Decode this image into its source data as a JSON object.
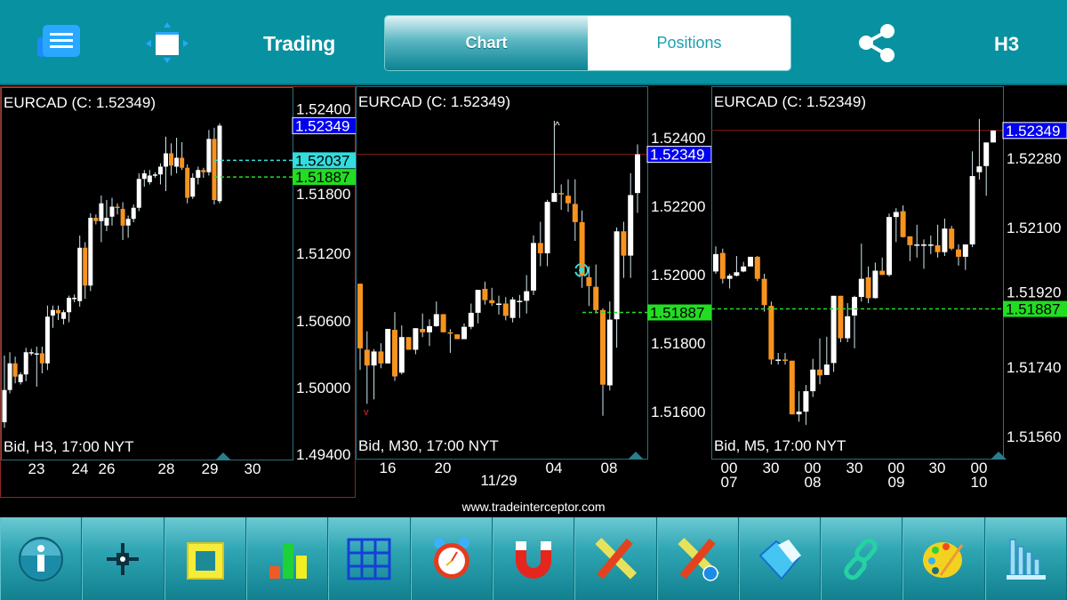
{
  "header": {
    "title": "Trading",
    "tabs": [
      {
        "label": "Chart",
        "selected": true
      },
      {
        "label": "Positions",
        "selected": false
      }
    ],
    "timeframe": "H3",
    "icons": [
      "menu-icon",
      "fullscreen-icon",
      "share-icon"
    ]
  },
  "colors": {
    "header": "#0891a1",
    "bull_candle": "#ffffff",
    "bear_candle": "#f7931e",
    "current_price": "#0000ee",
    "green_line": "#22dd22",
    "cyan_line": "#33dddd",
    "red_line": "#8b1a1a"
  },
  "footer": {
    "site": "www.tradeinterceptor.com"
  },
  "toolbar": [
    "info-icon",
    "crosshair-icon",
    "ruler-frame-icon",
    "bar-chart-icon",
    "grid-icon",
    "alarm-clock-icon",
    "magnet-icon",
    "drawing-tools-icon",
    "drawing-tools-info-icon",
    "folder-icon",
    "link-icon",
    "palette-icon",
    "indicators-icon"
  ],
  "chart_data": [
    {
      "type": "candlestick",
      "title": "EURCAD (C: 1.52349)",
      "footer": "Bid, H3, 17:00 NYT",
      "y_ticks": [
        "1.52400",
        "1.51800",
        "1.51200",
        "1.50600",
        "1.50000",
        "1.49400"
      ],
      "x_ticks": [
        "23",
        "24",
        "26",
        "28",
        "29",
        "30"
      ],
      "price_tags": [
        {
          "value": "1.52349",
          "kind": "current"
        },
        {
          "value": "1.52037",
          "kind": "cyan"
        },
        {
          "value": "1.51887",
          "kind": "green"
        }
      ],
      "candles": [
        [
          1.4968,
          1.5028,
          1.4963,
          1.4997
        ],
        [
          1.4997,
          1.5031,
          1.4994,
          1.5021
        ],
        [
          1.5021,
          1.5027,
          1.5003,
          1.5009
        ],
        [
          1.5004,
          1.5013,
          1.5002,
          1.5011
        ],
        [
          1.5011,
          1.5035,
          1.5005,
          1.5031
        ],
        [
          1.5031,
          1.5034,
          1.5028,
          1.5031
        ],
        [
          1.503,
          1.5036,
          1.5,
          1.503
        ],
        [
          1.503,
          1.5036,
          1.5012,
          1.5021
        ],
        [
          1.5021,
          1.5073,
          1.5015,
          1.5063
        ],
        [
          1.5064,
          1.5073,
          1.5053,
          1.5069
        ],
        [
          1.5069,
          1.5073,
          1.506,
          1.5066
        ],
        [
          1.5061,
          1.5069,
          1.5056,
          1.5067
        ],
        [
          1.5067,
          1.5082,
          1.5058,
          1.508
        ],
        [
          1.508,
          1.5083,
          1.5076,
          1.508
        ],
        [
          1.5077,
          1.5136,
          1.5072,
          1.5125
        ],
        [
          1.5125,
          1.513,
          1.5079,
          1.5091
        ],
        [
          1.5091,
          1.5156,
          1.5086,
          1.5152
        ],
        [
          1.5152,
          1.5155,
          1.5146,
          1.5149
        ],
        [
          1.5149,
          1.5172,
          1.513,
          1.5165
        ],
        [
          1.5145,
          1.5168,
          1.514,
          1.5152
        ],
        [
          1.5153,
          1.517,
          1.5145,
          1.5162
        ],
        [
          1.5162,
          1.5165,
          1.5155,
          1.5161
        ],
        [
          1.516,
          1.5166,
          1.5132,
          1.5145
        ],
        [
          1.5145,
          1.5154,
          1.5134,
          1.5151
        ],
        [
          1.5151,
          1.5164,
          1.5148,
          1.5161
        ],
        [
          1.5161,
          1.5192,
          1.5158,
          1.5187
        ],
        [
          1.5187,
          1.5195,
          1.518,
          1.5192
        ],
        [
          1.5184,
          1.5195,
          1.5182,
          1.519
        ],
        [
          1.5191,
          1.5193,
          1.5188,
          1.5191
        ],
        [
          1.5191,
          1.5201,
          1.5182,
          1.5198
        ],
        [
          1.5198,
          1.5225,
          1.5176,
          1.521
        ],
        [
          1.521,
          1.5219,
          1.519,
          1.5199
        ],
        [
          1.5198,
          1.5224,
          1.5192,
          1.5206
        ],
        [
          1.5206,
          1.522,
          1.5195,
          1.5197
        ],
        [
          1.5197,
          1.52,
          1.5165,
          1.517
        ],
        [
          1.5171,
          1.5192,
          1.5169,
          1.5188
        ],
        [
          1.5188,
          1.5198,
          1.5182,
          1.5195
        ],
        [
          1.5195,
          1.5197,
          1.5188,
          1.5193
        ],
        [
          1.5193,
          1.5231,
          1.519,
          1.5223
        ],
        [
          1.5223,
          1.5233,
          1.5164,
          1.5168
        ],
        [
          1.5167,
          1.5237,
          1.5165,
          1.52349
        ]
      ]
    },
    {
      "type": "candlestick",
      "title": "EURCAD (C: 1.52349)",
      "footer": "Bid, M30, 17:00 NYT",
      "y_ticks": [
        "1.52400",
        "1.52200",
        "1.52000",
        "1.51800",
        "1.51600"
      ],
      "x_ticks": [
        "16",
        "20",
        "04",
        "08"
      ],
      "x_date": "11/29",
      "price_tags": [
        {
          "value": "1.52349",
          "kind": "current"
        },
        {
          "value": "1.51887",
          "kind": "green"
        }
      ],
      "candles": [
        [
          1.51971,
          1.51971,
          1.51719,
          1.51782
        ],
        [
          1.51778,
          1.51832,
          1.5162,
          1.51732
        ],
        [
          1.51732,
          1.5178,
          1.51633,
          1.51773
        ],
        [
          1.51773,
          1.51797,
          1.51724,
          1.51738
        ],
        [
          1.51738,
          1.51839,
          1.51738,
          1.51839
        ],
        [
          1.51836,
          1.51888,
          1.51687,
          1.517
        ],
        [
          1.51711,
          1.51849,
          1.51706,
          1.51815
        ],
        [
          1.51815,
          1.51815,
          1.51778,
          1.51778
        ],
        [
          1.51778,
          1.51841,
          1.51765,
          1.51841
        ],
        [
          1.51839,
          1.51884,
          1.51815,
          1.51829
        ],
        [
          1.51829,
          1.51867,
          1.51789,
          1.51847
        ],
        [
          1.51847,
          1.51919,
          1.51845,
          1.51882
        ],
        [
          1.51882,
          1.51882,
          1.51829,
          1.51829
        ],
        [
          1.51829,
          1.51838,
          1.51769,
          1.51825
        ],
        [
          1.51823,
          1.51823,
          1.51809,
          1.51809
        ],
        [
          1.51809,
          1.51855,
          1.51809,
          1.51845
        ],
        [
          1.51845,
          1.51913,
          1.51838,
          1.51886
        ],
        [
          1.51886,
          1.51953,
          1.51855,
          1.51953
        ],
        [
          1.51956,
          1.51977,
          1.5191,
          1.51923
        ],
        [
          1.51923,
          1.51959,
          1.51906,
          1.51914
        ],
        [
          1.51913,
          1.51936,
          1.51881,
          1.51913
        ],
        [
          1.51913,
          1.51932,
          1.51864,
          1.51877
        ],
        [
          1.51871,
          1.51932,
          1.51858,
          1.51925
        ],
        [
          1.51921,
          1.51938,
          1.51871,
          1.51921
        ],
        [
          1.51921,
          1.51996,
          1.51884,
          1.51949
        ],
        [
          1.51951,
          1.52112,
          1.51938,
          1.5209
        ],
        [
          1.5209,
          1.52152,
          1.52022,
          1.5206
        ],
        [
          1.5206,
          1.52216,
          1.52022,
          1.5221
        ],
        [
          1.5221,
          1.52447,
          1.5221,
          1.52236
        ],
        [
          1.52236,
          1.52261,
          1.52187,
          1.52234
        ],
        [
          1.52228,
          1.52276,
          1.52181,
          1.52206
        ],
        [
          1.52204,
          1.52276,
          1.52096,
          1.52151
        ],
        [
          1.52151,
          1.52185,
          1.51959,
          1.51994
        ],
        [
          1.5199,
          1.52022,
          1.51906,
          1.51964
        ],
        [
          1.51962,
          1.52027,
          1.51884,
          1.51894
        ],
        [
          1.51894,
          1.51899,
          1.51585,
          1.51676
        ],
        [
          1.51674,
          1.51919,
          1.51659,
          1.51866
        ],
        [
          1.51867,
          1.52135,
          1.51784,
          1.52124
        ],
        [
          1.52124,
          1.52152,
          1.51988,
          1.52053
        ],
        [
          1.52053,
          1.52294,
          1.51988,
          1.5223
        ],
        [
          1.52236,
          1.52378,
          1.52178,
          1.52349
        ]
      ]
    },
    {
      "type": "candlestick",
      "title": "EURCAD (C: 1.52349)",
      "footer": "Bid, M5, 17:00 NYT",
      "y_ticks": [
        "1.52280",
        "1.52100",
        "1.51920",
        "1.51740",
        "1.51560"
      ],
      "x_ticks": [
        [
          "00",
          "07"
        ],
        [
          "30",
          ""
        ],
        [
          "00",
          "08"
        ],
        [
          "30",
          ""
        ],
        [
          "00",
          "09"
        ],
        [
          "30",
          ""
        ],
        [
          "00",
          "10"
        ]
      ],
      "price_tags": [
        {
          "value": "1.52349",
          "kind": "current"
        },
        {
          "value": "1.51887",
          "kind": "green"
        }
      ],
      "candles": [
        [
          1.51984,
          1.52049,
          1.51978,
          1.52029
        ],
        [
          1.52032,
          1.52043,
          1.51953,
          1.51965
        ],
        [
          1.51965,
          1.51978,
          1.5194,
          1.51973
        ],
        [
          1.51973,
          1.52024,
          1.51971,
          1.51982
        ],
        [
          1.51984,
          1.52009,
          1.51982,
          1.51997
        ],
        [
          1.51997,
          1.52022,
          1.51997,
          1.52022
        ],
        [
          1.52022,
          1.52024,
          1.51959,
          1.51965
        ],
        [
          1.51965,
          1.51978,
          1.5188,
          1.51897
        ],
        [
          1.51895,
          1.51906,
          1.51743,
          1.51756
        ],
        [
          1.51756,
          1.51773,
          1.51743,
          1.51756
        ],
        [
          1.51756,
          1.51773,
          1.51743,
          1.51755
        ],
        [
          1.51753,
          1.51753,
          1.51614,
          1.51614
        ],
        [
          1.51614,
          1.51674,
          1.51595,
          1.51621
        ],
        [
          1.51621,
          1.5169,
          1.51587,
          1.51674
        ],
        [
          1.51674,
          1.51758,
          1.51659,
          1.5173
        ],
        [
          1.5173,
          1.51811,
          1.51692,
          1.51715
        ],
        [
          1.51716,
          1.51815,
          1.51716,
          1.51743
        ],
        [
          1.51747,
          1.51921,
          1.51724,
          1.51921
        ],
        [
          1.51921,
          1.51921,
          1.51801,
          1.51811
        ],
        [
          1.51811,
          1.51902,
          1.51801,
          1.51868
        ],
        [
          1.5187,
          1.51921,
          1.51785,
          1.51918
        ],
        [
          1.51918,
          1.52056,
          1.51906,
          1.51965
        ],
        [
          1.51969,
          1.51997,
          1.51902,
          1.51915
        ],
        [
          1.51915,
          1.52007,
          1.51914,
          1.51986
        ],
        [
          1.51986,
          1.5202,
          1.51975,
          1.51975
        ],
        [
          1.51975,
          1.52134,
          1.51971,
          1.52125
        ],
        [
          1.52125,
          1.52148,
          1.5206,
          1.52138
        ],
        [
          1.5214,
          1.52155,
          1.52072,
          1.52073
        ],
        [
          1.52075,
          1.52075,
          1.52011,
          1.52052
        ],
        [
          1.52054,
          1.52105,
          1.5202,
          1.52054
        ],
        [
          1.52054,
          1.52067,
          1.51991,
          1.52054
        ],
        [
          1.52054,
          1.52077,
          1.52029,
          1.52054
        ],
        [
          1.52052,
          1.52105,
          1.5202,
          1.52034
        ],
        [
          1.52034,
          1.52121,
          1.52024,
          1.52095
        ],
        [
          1.52095,
          1.52102,
          1.52039,
          1.52043
        ],
        [
          1.52041,
          1.52054,
          1.51999,
          1.52022
        ],
        [
          1.52022,
          1.52054,
          1.51988,
          1.52054
        ],
        [
          1.52054,
          1.52295,
          1.52047,
          1.52231
        ],
        [
          1.52241,
          1.52379,
          1.52222,
          1.52256
        ],
        [
          1.52257,
          1.52318,
          1.5218,
          1.52318
        ],
        [
          1.52318,
          1.52349,
          1.52318,
          1.52349
        ]
      ]
    }
  ]
}
